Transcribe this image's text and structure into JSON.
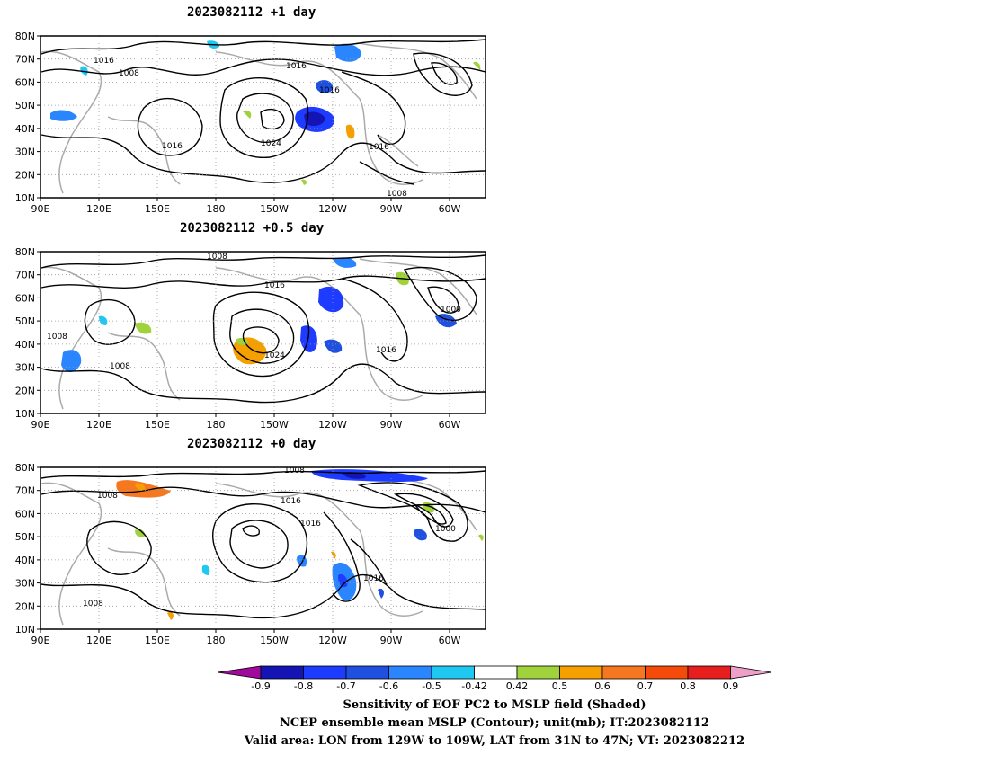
{
  "panels": [
    {
      "title": "2023082112 +1 day",
      "contour_labels": [
        "1016",
        "1008",
        "1016",
        "1016",
        "1016",
        "1024",
        "1016",
        "1008"
      ]
    },
    {
      "title": "2023082112 +0.5 day",
      "contour_labels": [
        "1008",
        "1016",
        "1000",
        "1008",
        "1008",
        "1024",
        "1016"
      ]
    },
    {
      "title": "2023082112 +0 day",
      "contour_labels": [
        "1008",
        "1008",
        "1016",
        "1016",
        "1000",
        "1016",
        "1008"
      ]
    }
  ],
  "axes": {
    "y_ticks": [
      "80N",
      "70N",
      "60N",
      "50N",
      "40N",
      "30N",
      "20N",
      "10N"
    ],
    "x_ticks": [
      "90E",
      "120E",
      "150E",
      "180",
      "150W",
      "120W",
      "90W",
      "60W"
    ]
  },
  "colorbar": {
    "tick_labels": [
      "-0.9",
      "-0.8",
      "-0.7",
      "-0.6",
      "-0.5",
      "-0.42",
      "0.42",
      "0.5",
      "0.6",
      "0.7",
      "0.8",
      "0.9"
    ],
    "colors": [
      "#a00a9b",
      "#1414b4",
      "#1e3cff",
      "#2050e0",
      "#2a86ff",
      "#1ec8f0",
      "#ffffff",
      "#a0d23c",
      "#f5a000",
      "#f57820",
      "#f54b0a",
      "#e61e1e",
      "#f0a0c8"
    ]
  },
  "caption": {
    "line1": "Sensitivity of EOF PC2 to MSLP field (Shaded)",
    "line2": "NCEP ensemble mean MSLP (Contour); unit(mb); IT:2023082112",
    "line3": "Valid area: LON from 129W to 109W, LAT from 31N to 47N; VT: 2023082212"
  }
}
